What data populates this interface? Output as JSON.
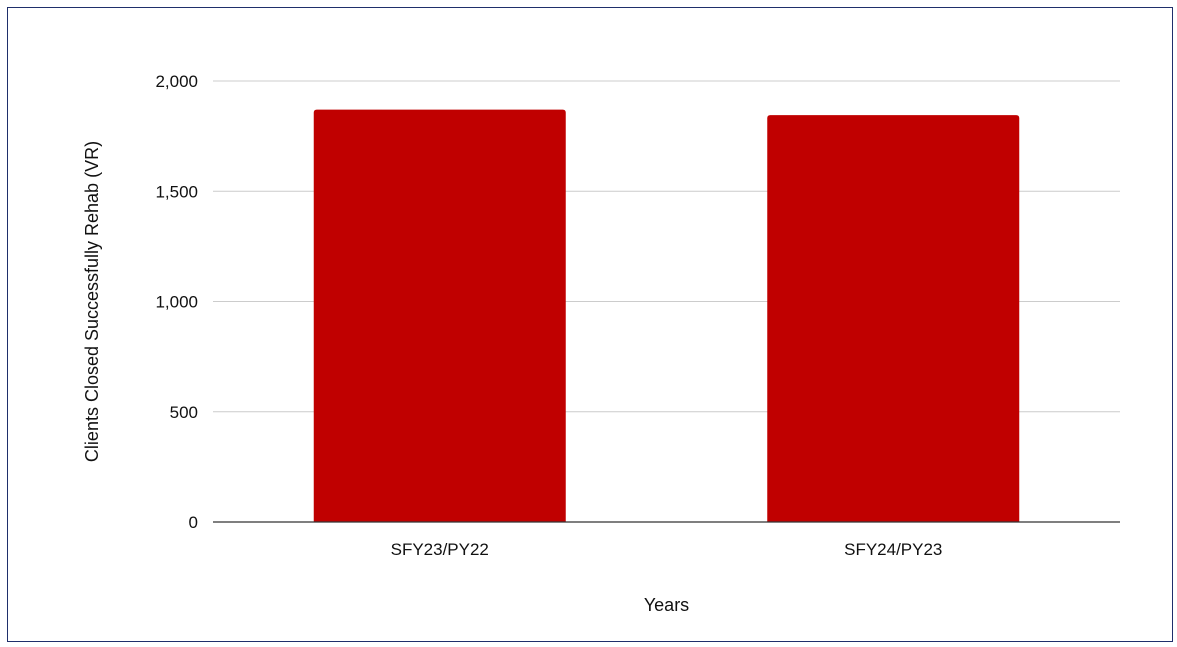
{
  "chart_data": {
    "type": "bar",
    "title": "",
    "xlabel": "Years",
    "ylabel": "Clients Closed Successfully Rehab (VR)",
    "categories": [
      "SFY23/PY22",
      "SFY24/PY23"
    ],
    "values": [
      1870,
      1845
    ],
    "ylim": [
      0,
      2000
    ],
    "yticks": [
      0,
      500,
      1000,
      1500,
      2000
    ],
    "ytick_labels": [
      "0",
      "500",
      "1,000",
      "1,500",
      "2,000"
    ],
    "grid": true,
    "legend": "none",
    "colors": {
      "bar": "#c00000",
      "grid": "#cccccc",
      "axis": "#333333",
      "frame": "#1f2f6b"
    }
  }
}
